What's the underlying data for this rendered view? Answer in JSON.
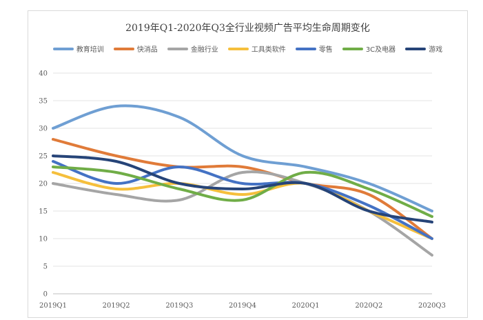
{
  "chart_data": {
    "type": "line",
    "title": "2019年Q1-2020年Q3全行业视频广告平均生命周期变化",
    "categories": [
      "2019Q1",
      "2019Q2",
      "2019Q3",
      "2019Q4",
      "2020Q1",
      "2020Q2",
      "2020Q3"
    ],
    "ylim": [
      0,
      40
    ],
    "yticks": [
      0,
      5,
      10,
      15,
      20,
      25,
      30,
      35,
      40
    ],
    "grid": true,
    "legend": "top",
    "series": [
      {
        "name": "教育培训",
        "color": "#6f9fd3",
        "values": [
          30,
          34,
          32,
          25,
          23,
          20,
          15
        ]
      },
      {
        "name": "快消品",
        "color": "#e07b39",
        "values": [
          28,
          25,
          23,
          23,
          20,
          18,
          10
        ]
      },
      {
        "name": "金融行业",
        "color": "#a5a5a5",
        "values": [
          20,
          18,
          17,
          22,
          20,
          15,
          7
        ]
      },
      {
        "name": "工具类软件",
        "color": "#f5bf3c",
        "values": [
          22,
          19,
          20,
          18,
          20,
          15,
          10
        ]
      },
      {
        "name": "零售",
        "color": "#4472c4",
        "values": [
          24,
          20,
          23,
          20,
          20,
          16,
          10
        ]
      },
      {
        "name": "3C及电器",
        "color": "#70ad47",
        "values": [
          23,
          22,
          19,
          17,
          22,
          19,
          14
        ]
      },
      {
        "name": "游戏",
        "color": "#264478",
        "values": [
          25,
          24,
          20,
          19,
          20,
          15,
          13
        ]
      }
    ]
  }
}
